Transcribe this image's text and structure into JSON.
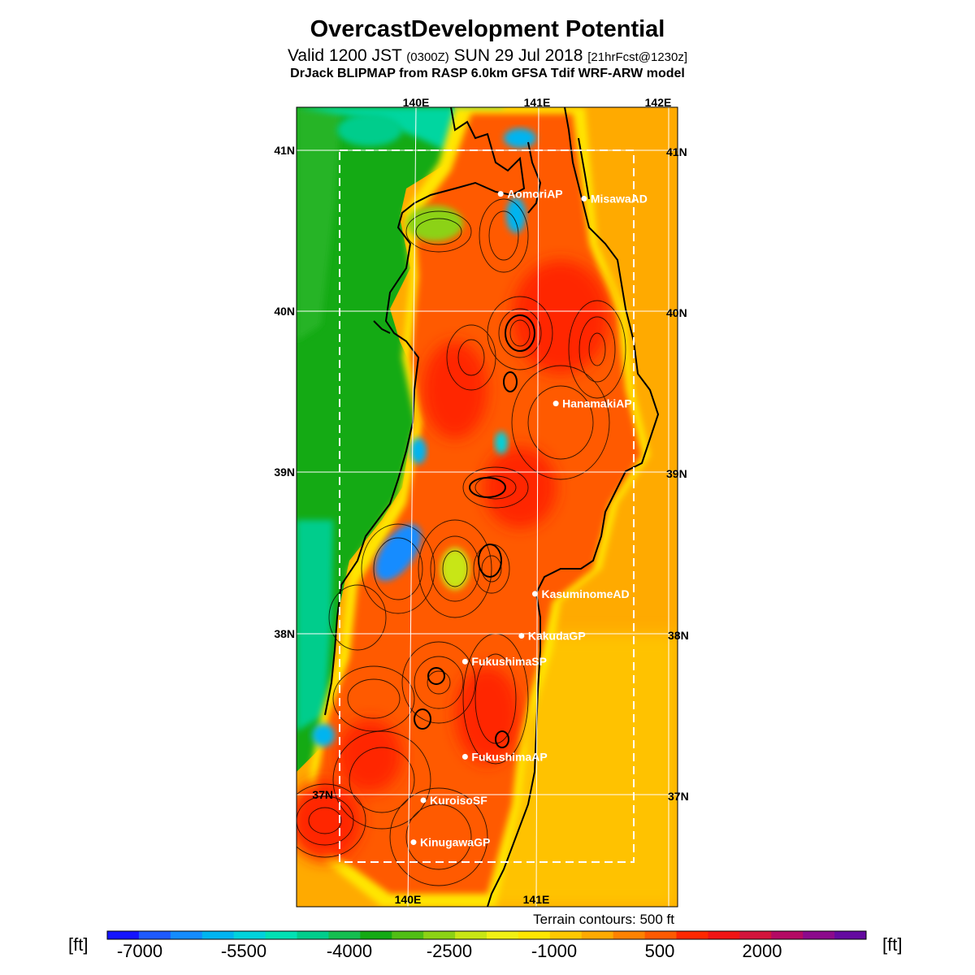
{
  "title": "OvercastDevelopment Potential",
  "valid": {
    "prefix": "Valid 1200 JST",
    "utc": "(0300Z)",
    "date": "SUN 29 Jul 2018",
    "forecast": "[21hrFcst@1230z]"
  },
  "model_line": "DrJack BLIPMAP from RASP 6.0km GFSA Tdif WRF-ARW model",
  "map": {
    "lon_labels_top": [
      "140E",
      "141E",
      "142E"
    ],
    "lon_labels_bottom": [
      "140E",
      "141E"
    ],
    "lat_labels_left": [
      "41N",
      "40N",
      "39N",
      "38N",
      "37N"
    ],
    "lat_labels_right": [
      "41N",
      "40N",
      "39N",
      "38N",
      "37N"
    ],
    "stations": [
      {
        "name": "AomoriAP",
        "lat": 40.73,
        "lon": 140.69
      },
      {
        "name": "MisawaAD",
        "lat": 40.7,
        "lon": 141.37
      },
      {
        "name": "HanamakiAP",
        "lat": 39.43,
        "lon": 141.14
      },
      {
        "name": "KasuminomeAD",
        "lat": 38.25,
        "lon": 140.97
      },
      {
        "name": "KakudaGP",
        "lat": 37.99,
        "lon": 140.86
      },
      {
        "name": "FukushimaSP",
        "lat": 37.83,
        "lon": 140.4
      },
      {
        "name": "FukushimaAP",
        "lat": 37.24,
        "lon": 140.4
      },
      {
        "name": "KuroisoSF",
        "lat": 36.97,
        "lon": 140.06
      },
      {
        "name": "KinugawaGP",
        "lat": 36.71,
        "lon": 139.98
      }
    ],
    "contour_note": "Terrain contours: 500 ft"
  },
  "colorbar": {
    "unit": "[ft]",
    "labels": [
      "-7000",
      "-5500",
      "-4000",
      "-2500",
      "-1000",
      "500",
      "2000"
    ],
    "colors": [
      "#1414ff",
      "#1e5aff",
      "#148cff",
      "#00b4f0",
      "#00d2dc",
      "#00e1b4",
      "#00cd8c",
      "#14be50",
      "#14aa14",
      "#50be14",
      "#8cd214",
      "#c8e614",
      "#f0f014",
      "#ffe600",
      "#ffc800",
      "#ffaa00",
      "#ff8200",
      "#ff5a00",
      "#ff2800",
      "#f01414",
      "#d2143c",
      "#b40a64",
      "#8c0a8c",
      "#640aa0"
    ]
  }
}
